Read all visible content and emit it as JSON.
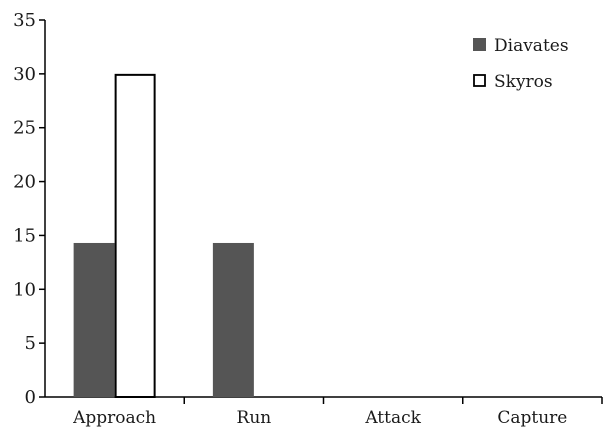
{
  "chart_data": {
    "type": "bar",
    "categories": [
      "Approach",
      "Run",
      "Attack",
      "Capture"
    ],
    "series": [
      {
        "name": "Diavates",
        "values": [
          14.3,
          14.3,
          0,
          0
        ],
        "color": "#555555"
      },
      {
        "name": "Skyros",
        "values": [
          30,
          0,
          0,
          0
        ],
        "color": "#ffffff"
      }
    ],
    "ylim": [
      0,
      35
    ],
    "yticks": [
      "0",
      "5",
      "10",
      "15",
      "20",
      "25",
      "30",
      "35"
    ],
    "xlabel": "",
    "ylabel": "",
    "grid": false,
    "legend_position": "top-right"
  }
}
